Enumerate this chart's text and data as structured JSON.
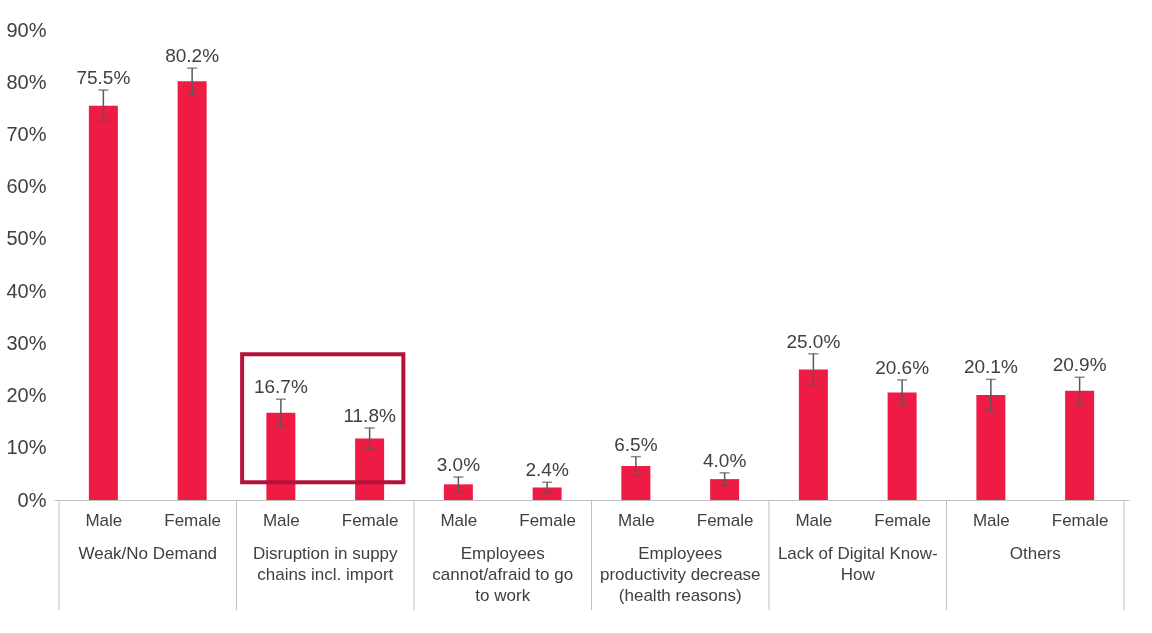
{
  "chart_data": {
    "type": "bar",
    "categories": [
      "Male",
      "Female",
      "Male",
      "Female",
      "Male",
      "Female",
      "Male",
      "Female",
      "Male",
      "Female",
      "Male",
      "Female"
    ],
    "values": [
      75.5,
      80.2,
      16.7,
      11.8,
      3.0,
      2.4,
      6.5,
      4.0,
      25.0,
      20.6,
      20.1,
      20.9
    ],
    "errors": [
      3,
      2.5,
      2.6,
      2,
      1.4,
      1,
      1.8,
      1.2,
      3,
      2.4,
      3,
      2.6
    ],
    "value_labels": [
      "75.5%",
      "80.2%",
      "16.7%",
      "11.8%",
      "3.0%",
      "2.4%",
      "6.5%",
      "4.0%",
      "25.0%",
      "20.6%",
      "20.1%",
      "20.9%"
    ],
    "color": "#ee1b45",
    "ylim": [
      0,
      90
    ],
    "yticks": [
      {
        "value": 0,
        "label": "0%"
      },
      {
        "value": 10,
        "label": "10%"
      },
      {
        "value": 20,
        "label": "20%"
      },
      {
        "value": 30,
        "label": "30%"
      },
      {
        "value": 40,
        "label": "40%"
      },
      {
        "value": 50,
        "label": "50%"
      },
      {
        "value": 60,
        "label": "60%"
      },
      {
        "value": 70,
        "label": "70%"
      },
      {
        "value": 80,
        "label": "80%"
      },
      {
        "value": 90,
        "label": "90%"
      }
    ],
    "annotations": [
      "Weak/No Demand",
      "Disruption in suppy chains incl. import",
      "Employees cannot/afraid to go to work",
      "Employees productivity decrease (health reasons)",
      "Lack of Digital Know-How",
      "Others"
    ],
    "grid": false
  }
}
